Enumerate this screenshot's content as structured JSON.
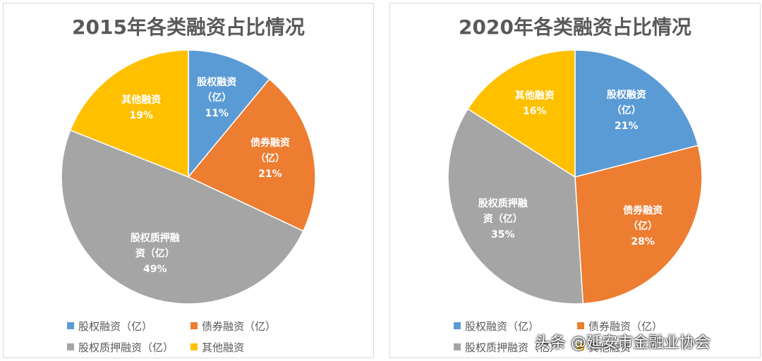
{
  "chart_data": [
    {
      "type": "pie",
      "title": "2015年各类融资占比情况",
      "categories": [
        "股权融资（亿）",
        "债券融资（亿）",
        "股权质押融资（亿）",
        "其他融资"
      ],
      "values": [
        11,
        21,
        49,
        19
      ],
      "value_labels": [
        "11%",
        "21%",
        "49%",
        "19%"
      ],
      "colors": [
        "#5b9bd5",
        "#ed7d31",
        "#a5a5a5",
        "#ffc000"
      ],
      "legend": "bottom"
    },
    {
      "type": "pie",
      "title": "2020年各类融资占比情况",
      "categories": [
        "股权融资（亿）",
        "债券融资（亿）",
        "股权质押融资（亿）",
        "其他融资"
      ],
      "values": [
        21,
        28,
        35,
        16
      ],
      "value_labels": [
        "21%",
        "28%",
        "35%",
        "16%"
      ],
      "colors": [
        "#5b9bd5",
        "#ed7d31",
        "#a5a5a5",
        "#ffc000"
      ],
      "legend": "bottom"
    }
  ],
  "watermark": "头条 @延安市金融业协会"
}
